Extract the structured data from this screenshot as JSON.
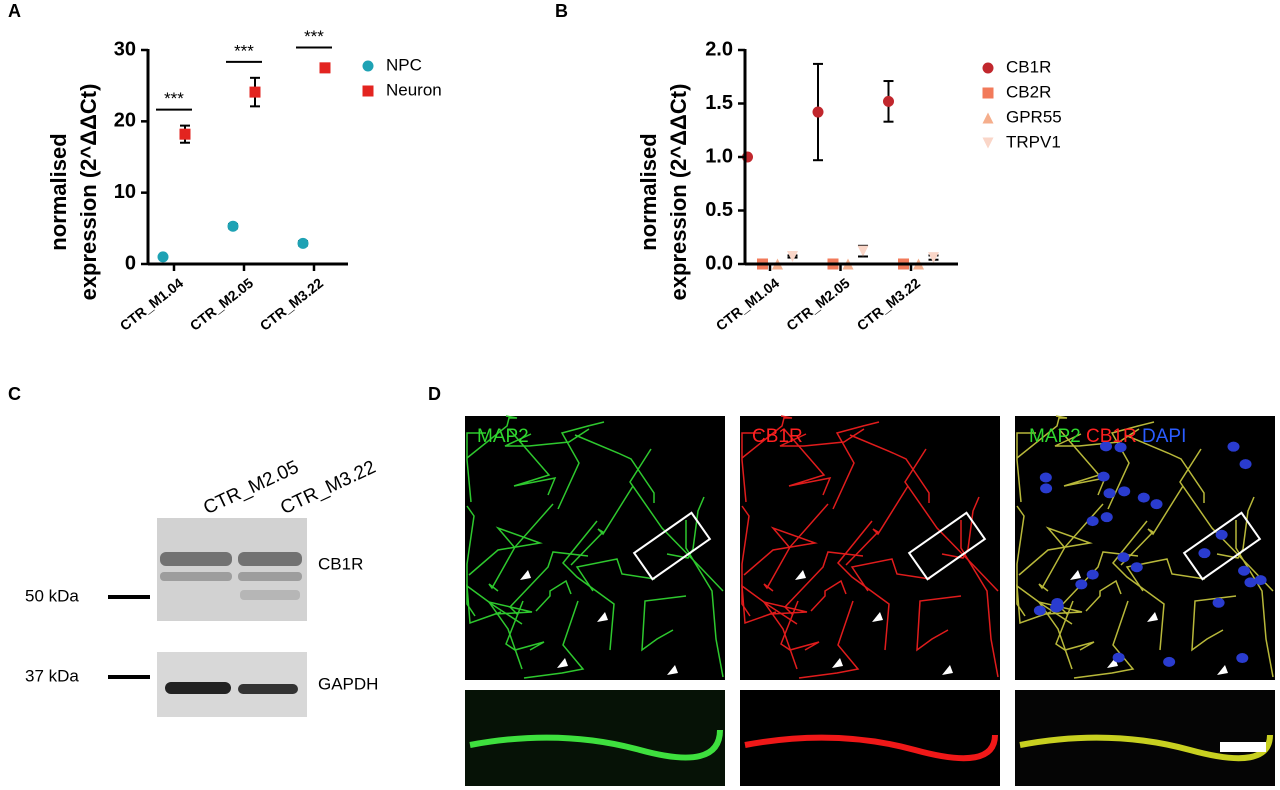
{
  "chart_data": [
    {
      "type": "dot",
      "panel": "A",
      "ylabel": [
        "normalised",
        "expression (2^ΔΔCt)"
      ],
      "categories": [
        "CTR_M1.04",
        "CTR_M2.05",
        "CTR_M3.22"
      ],
      "series": [
        {
          "name": "NPC",
          "color": "#1ea2b4",
          "marker": "circle",
          "values": [
            1.0,
            5.3,
            2.9
          ],
          "errors": [
            0.1,
            0.3,
            0.3
          ]
        },
        {
          "name": "Neuron",
          "color": "#e32420",
          "marker": "square",
          "values": [
            18.2,
            24.1,
            27.5
          ],
          "errors": [
            1.2,
            2.0,
            0.6
          ]
        }
      ],
      "annotations": [
        "***",
        "***",
        "***"
      ],
      "ylim": [
        0,
        30
      ],
      "yticks": [
        0,
        10,
        20,
        30
      ],
      "grid": false,
      "legend": "right"
    },
    {
      "type": "dot",
      "panel": "B",
      "ylabel": [
        "normalised",
        "expression (2^ΔΔCt)"
      ],
      "categories": [
        "CTR_M1.04",
        "CTR_M2.05",
        "CTR_M3.22"
      ],
      "series": [
        {
          "name": "CB1R",
          "color": "#c1272d",
          "marker": "circle",
          "values": [
            1.0,
            1.42,
            1.52
          ],
          "errors": [
            0.0,
            0.45,
            0.19
          ]
        },
        {
          "name": "CB2R",
          "color": "#f27a5a",
          "marker": "square",
          "values": [
            0.0,
            0.0,
            0.0
          ],
          "errors": [
            0.0,
            0.0,
            0.0
          ]
        },
        {
          "name": "GPR55",
          "color": "#f5ae8c",
          "marker": "triangle",
          "values": [
            0.0,
            0.0,
            0.0
          ],
          "errors": [
            0.0,
            0.0,
            0.0
          ]
        },
        {
          "name": "TRPV1",
          "color": "#fad6c8",
          "marker": "triangle-down",
          "values": [
            0.07,
            0.12,
            0.06
          ],
          "errors": [
            0.01,
            0.05,
            0.02
          ]
        }
      ],
      "ylim": [
        0,
        2
      ],
      "yticks": [
        {
          "value": 0,
          "label": "0.0"
        },
        0.5,
        {
          "value": 1,
          "label": "1.0"
        },
        1.5,
        {
          "value": 2,
          "label": "2.0"
        }
      ],
      "grid": false,
      "legend": "right"
    }
  ],
  "panel_c": {
    "label": "C",
    "lanes": [
      "CTR_M2.05",
      "CTR_M3.22"
    ],
    "markers": [
      "50 kDa",
      "37 kDa"
    ],
    "proteins": [
      "CB1R",
      "GAPDH"
    ]
  },
  "panel_d": {
    "label": "D",
    "channels": [
      "MAP2",
      "CB1R"
    ],
    "merge": [
      "MAP2",
      "CB1R",
      "DAPI"
    ]
  }
}
